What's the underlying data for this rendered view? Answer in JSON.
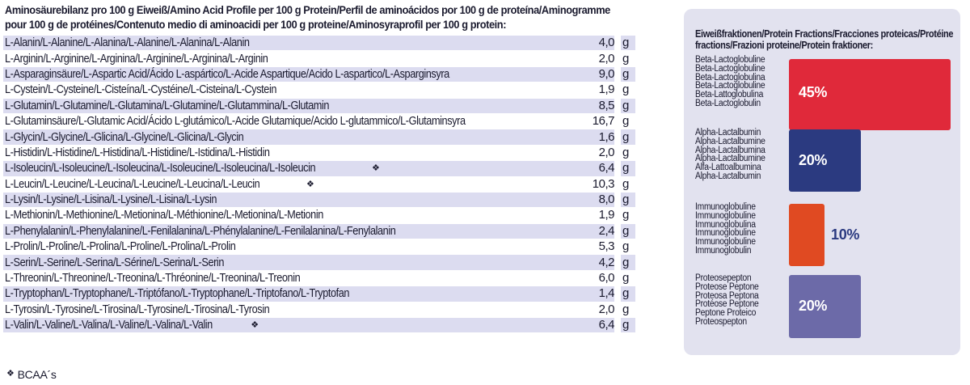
{
  "title": "Aminosäurebilanz pro 100 g Eiweiß/Amino Acid Profile per 100 g Protein/Perfil de aminoácidos por 100 g de proteína/Aminogramme pour 100 g de protéines/Contenuto medio di aminoacidi per 100 g proteine/Aminosyraprofil per 100 g protein:",
  "unit": "g",
  "bcaa_mark": "❖",
  "footnote": "BCAA´s",
  "rows": [
    {
      "name": "L-Alanin/L-Alanine/L-Alanina/L-Alanine/L-Alanina/L-Alanin",
      "value": "4,0",
      "bcaa": false
    },
    {
      "name": "L-Arginin/L-Arginine/L-Arginina/L-Arginine/L-Arginina/L-Arginin",
      "value": "2,0",
      "bcaa": false
    },
    {
      "name": "L-Asparaginsäure/L-Aspartic Acid/Ácido L-aspártico/L-Acide Aspartique/Acido L-aspartico/L-Asparginsyra",
      "value": "9,0",
      "bcaa": false
    },
    {
      "name": "L-Cystein/L-Cysteine/L-Cisteína/L-Cystéine/L-Cisteina/L-Cystein",
      "value": "1,9",
      "bcaa": false
    },
    {
      "name": "L-Glutamin/L-Glutamine/L-Glutamina/L-Glutamine/L-Glutammina/L-Glutamin",
      "value": "8,5",
      "bcaa": false
    },
    {
      "name": "L-Glutaminsäure/L-Glutamic Acid/Ácido L-glutámico/L-Acide Glutamique/Acido L-glutammico/L-Glutaminsyra",
      "value": "16,7",
      "bcaa": false
    },
    {
      "name": "L-Glycin/L-Glycine/L-Glicina/L-Glycine/L-Glicina/L-Glycin",
      "value": "1,6",
      "bcaa": false
    },
    {
      "name": "L-Histidin/L-Histidine/L-Histidina/L-Histidine/L-Istidina/L-Histidin",
      "value": "2,0",
      "bcaa": false
    },
    {
      "name": "L-Isoleucin/L-Isoleucine/L-Isoleucina/L-Isoleucine/L-Isoleucina/L-Isoleucin",
      "value": "6,4",
      "bcaa": true
    },
    {
      "name": "L-Leucin/L-Leucine/L-Leucina/L-Leucine/L-Leucina/L-Leucin",
      "value": "10,3",
      "bcaa": true
    },
    {
      "name": "L-Lysin/L-Lysine/L-Lisina/L-Lysine/L-Lisina/L-Lysin",
      "value": "8,0",
      "bcaa": false
    },
    {
      "name": "L-Methionin/L-Methionine/L-Metionina/L-Méthionine/L-Metionina/L-Metionin",
      "value": "1,9",
      "bcaa": false
    },
    {
      "name": "L-Phenylalanin/L-Phenylalanine/L-Fenilalanina/L-Phénylalanine/L-Fenilalanina/L-Fenylalanin",
      "value": "2,4",
      "bcaa": false
    },
    {
      "name": "L-Prolin/L-Proline/L-Prolina/L-Proline/L-Prolina/L-Prolin",
      "value": "5,3",
      "bcaa": false
    },
    {
      "name": "L-Serin/L-Serine/L-Serina/L-Sérine/L-Serina/L-Serin",
      "value": "4,2",
      "bcaa": false
    },
    {
      "name": "L-Threonin/L-Threonine/L-Treonina/L-Thréonine/L-Treonina/L-Treonin",
      "value": "6,0",
      "bcaa": false
    },
    {
      "name": "L-Tryptophan/L-Tryptophane/L-Triptófano/L-Tryptophane/L-Triptofano/L-Tryptofan",
      "value": "1,4",
      "bcaa": false
    },
    {
      "name": "L-Tyrosin/L-Tyrosine/L-Tirosina/L-Tyrosine/L-Tirosina/L-Tyrosin",
      "value": "2,0",
      "bcaa": false
    },
    {
      "name": "L-Valin/L-Valine/L-Valina/L-Valine/L-Valina/L-Valin",
      "value": "6,4",
      "bcaa": true
    }
  ],
  "fractions_panel": {
    "title": "Eiweißfraktionen/Protein Fractions/Fracciones proteicas/Protéine fractions/Frazioni proteine/Protein fraktioner:",
    "fractions": [
      {
        "names": [
          "Beta-Lactoglobuline",
          "Beta-Lactoglobuline",
          "Beta-Lactoglobulina",
          "Beta-Lactoglobuline",
          "Beta-Lattoglobulina",
          "Beta-Lactoglobulin"
        ],
        "percent": 45,
        "label": "45%",
        "color": "#e0293a"
      },
      {
        "names": [
          "Alpha-Lactalbumin",
          "Alpha-Lactalbumine",
          "Alpha-Lactalbumina",
          "Alpha-Lactalbumine",
          "Alfa-Lattoalbumina",
          "Alpha-Lactalbumin"
        ],
        "percent": 20,
        "label": "20%",
        "color": "#2b3a80"
      },
      {
        "names": [
          "Immunoglobuline",
          "Immunoglobuline",
          "Immunoglobulina",
          "Immunoglobuline",
          "Immunoglobuline",
          "Immunoglobulin"
        ],
        "percent": 10,
        "label": "10%",
        "color": "#e04a22"
      },
      {
        "names": [
          "Proteosepepton",
          "Proteose Peptone",
          "Proteosa Peptona",
          "Protéose Peptone",
          "Peptone Proteico",
          "Proteospepton"
        ],
        "percent": 20,
        "label": "20%",
        "color": "#6c6aa8"
      }
    ]
  },
  "colors": {
    "row_shade": "#dcdcf0",
    "text": "#1a1a2e",
    "panel_bg": "#e2e2ef"
  }
}
